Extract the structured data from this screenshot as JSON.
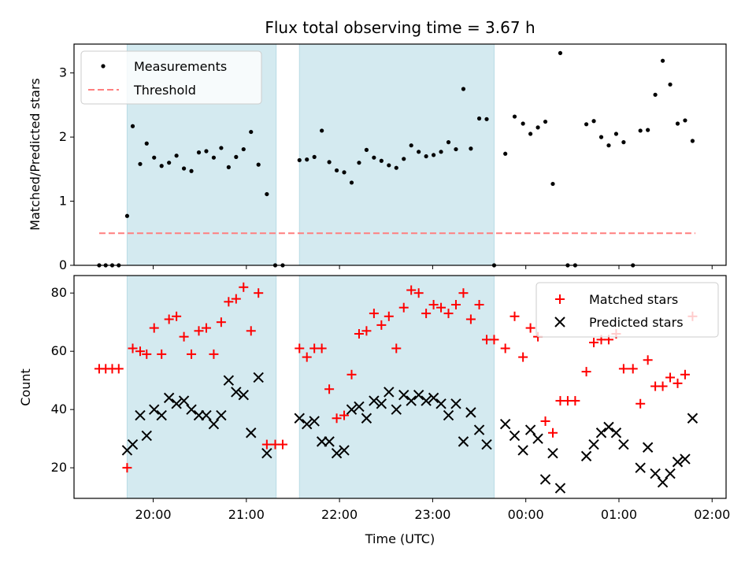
{
  "chart_data": {
    "title": "Flux total observing time = 3.67 h",
    "xlabel": "Time (UTC)",
    "xlim_hours": [
      19.15,
      26.15
    ],
    "x_ticks": [
      {
        "label": "20:00",
        "hour": 20
      },
      {
        "label": "21:00",
        "hour": 21
      },
      {
        "label": "22:00",
        "hour": 22
      },
      {
        "label": "23:00",
        "hour": 23
      },
      {
        "label": "00:00",
        "hour": 24
      },
      {
        "label": "01:00",
        "hour": 25
      },
      {
        "label": "02:00",
        "hour": 26
      }
    ],
    "shaded_intervals_hours": [
      [
        19.72,
        21.32
      ],
      [
        21.57,
        23.66
      ]
    ],
    "shade_color": "#d4eaf0",
    "panels": [
      {
        "id": "ratio",
        "type": "scatter",
        "ylabel": "Matched/Predicted stars",
        "ylim": [
          0,
          3.45
        ],
        "y_ticks": [
          0,
          1,
          2,
          3
        ],
        "legend": [
          {
            "label": "Measurements",
            "marker": "dot",
            "color": "#000000"
          },
          {
            "label": "Threshold",
            "marker": "dashed-line",
            "color": "#ff7f7f"
          }
        ],
        "threshold": {
          "value": 0.5,
          "x_range_hours": [
            19.42,
            25.82
          ],
          "color": "#ff7f7f"
        },
        "series": [
          {
            "name": "Measurements",
            "marker": "dot",
            "color": "#000000",
            "points": [
              [
                19.42,
                0
              ],
              [
                19.49,
                0
              ],
              [
                19.56,
                0
              ],
              [
                19.63,
                0
              ],
              [
                19.72,
                0.77
              ],
              [
                19.78,
                2.17
              ],
              [
                19.86,
                1.58
              ],
              [
                19.93,
                1.9
              ],
              [
                20.01,
                1.68
              ],
              [
                20.09,
                1.55
              ],
              [
                20.17,
                1.6
              ],
              [
                20.25,
                1.71
              ],
              [
                20.33,
                1.51
              ],
              [
                20.41,
                1.47
              ],
              [
                20.49,
                1.76
              ],
              [
                20.57,
                1.78
              ],
              [
                20.65,
                1.68
              ],
              [
                20.73,
                1.83
              ],
              [
                20.81,
                1.53
              ],
              [
                20.89,
                1.69
              ],
              [
                20.97,
                1.81
              ],
              [
                21.05,
                2.08
              ],
              [
                21.13,
                1.57
              ],
              [
                21.22,
                1.11
              ],
              [
                21.31,
                0
              ],
              [
                21.39,
                0
              ],
              [
                21.57,
                1.64
              ],
              [
                21.65,
                1.65
              ],
              [
                21.73,
                1.69
              ],
              [
                21.81,
                2.1
              ],
              [
                21.89,
                1.61
              ],
              [
                21.97,
                1.48
              ],
              [
                22.05,
                1.45
              ],
              [
                22.13,
                1.29
              ],
              [
                22.21,
                1.6
              ],
              [
                22.29,
                1.8
              ],
              [
                22.37,
                1.68
              ],
              [
                22.45,
                1.63
              ],
              [
                22.53,
                1.56
              ],
              [
                22.61,
                1.52
              ],
              [
                22.69,
                1.66
              ],
              [
                22.77,
                1.87
              ],
              [
                22.85,
                1.77
              ],
              [
                22.93,
                1.7
              ],
              [
                23.01,
                1.72
              ],
              [
                23.09,
                1.77
              ],
              [
                23.17,
                1.92
              ],
              [
                23.25,
                1.81
              ],
              [
                23.33,
                2.75
              ],
              [
                23.41,
                1.82
              ],
              [
                23.5,
                2.29
              ],
              [
                23.58,
                2.28
              ],
              [
                23.66,
                0
              ],
              [
                23.78,
                1.74
              ],
              [
                23.88,
                2.32
              ],
              [
                23.97,
                2.21
              ],
              [
                24.05,
                2.05
              ],
              [
                24.13,
                2.15
              ],
              [
                24.21,
                2.24
              ],
              [
                24.29,
                1.27
              ],
              [
                24.37,
                3.31
              ],
              [
                24.45,
                0
              ],
              [
                24.53,
                0
              ],
              [
                24.65,
                2.2
              ],
              [
                24.73,
                2.25
              ],
              [
                24.81,
                2.0
              ],
              [
                24.89,
                1.87
              ],
              [
                24.97,
                2.05
              ],
              [
                25.05,
                1.92
              ],
              [
                25.15,
                0
              ],
              [
                25.23,
                2.1
              ],
              [
                25.31,
                2.11
              ],
              [
                25.39,
                2.66
              ],
              [
                25.47,
                3.19
              ],
              [
                25.55,
                2.82
              ],
              [
                25.63,
                2.21
              ],
              [
                25.71,
                2.26
              ],
              [
                25.79,
                1.94
              ]
            ]
          }
        ]
      },
      {
        "id": "count",
        "type": "scatter",
        "ylabel": "Count",
        "ylim": [
          9.5,
          86
        ],
        "y_ticks": [
          20,
          40,
          60,
          80
        ],
        "legend": [
          {
            "label": "Matched stars",
            "marker": "plus",
            "color": "#ff0000"
          },
          {
            "label": "Predicted stars",
            "marker": "x",
            "color": "#000000"
          }
        ],
        "series": [
          {
            "name": "Matched stars",
            "marker": "plus",
            "color": "#ff0000",
            "points": [
              [
                19.42,
                54
              ],
              [
                19.49,
                54
              ],
              [
                19.56,
                54
              ],
              [
                19.63,
                54
              ],
              [
                19.72,
                20
              ],
              [
                19.78,
                61
              ],
              [
                19.86,
                60
              ],
              [
                19.93,
                59
              ],
              [
                20.01,
                68
              ],
              [
                20.09,
                59
              ],
              [
                20.17,
                71
              ],
              [
                20.25,
                72
              ],
              [
                20.33,
                65
              ],
              [
                20.41,
                59
              ],
              [
                20.49,
                67
              ],
              [
                20.57,
                68
              ],
              [
                20.65,
                59
              ],
              [
                20.73,
                70
              ],
              [
                20.81,
                77
              ],
              [
                20.89,
                78
              ],
              [
                20.97,
                82
              ],
              [
                21.05,
                67
              ],
              [
                21.13,
                80
              ],
              [
                21.22,
                28
              ],
              [
                21.31,
                28
              ],
              [
                21.39,
                28
              ],
              [
                21.57,
                61
              ],
              [
                21.65,
                58
              ],
              [
                21.73,
                61
              ],
              [
                21.81,
                61
              ],
              [
                21.89,
                47
              ],
              [
                21.97,
                37
              ],
              [
                22.05,
                38
              ],
              [
                22.13,
                52
              ],
              [
                22.21,
                66
              ],
              [
                22.29,
                67
              ],
              [
                22.37,
                73
              ],
              [
                22.45,
                69
              ],
              [
                22.53,
                72
              ],
              [
                22.61,
                61
              ],
              [
                22.69,
                75
              ],
              [
                22.77,
                81
              ],
              [
                22.85,
                80
              ],
              [
                22.93,
                73
              ],
              [
                23.01,
                76
              ],
              [
                23.09,
                75
              ],
              [
                23.17,
                73
              ],
              [
                23.25,
                76
              ],
              [
                23.33,
                80
              ],
              [
                23.41,
                71
              ],
              [
                23.5,
                76
              ],
              [
                23.58,
                64
              ],
              [
                23.66,
                64
              ],
              [
                23.78,
                61
              ],
              [
                23.88,
                72
              ],
              [
                23.97,
                58
              ],
              [
                24.05,
                68
              ],
              [
                24.13,
                65
              ],
              [
                24.21,
                36
              ],
              [
                24.29,
                32
              ],
              [
                24.37,
                43
              ],
              [
                24.45,
                43
              ],
              [
                24.53,
                43
              ],
              [
                24.65,
                53
              ],
              [
                24.73,
                63
              ],
              [
                24.81,
                64
              ],
              [
                24.89,
                64
              ],
              [
                24.97,
                66
              ],
              [
                25.05,
                54
              ],
              [
                25.15,
                54
              ],
              [
                25.23,
                42
              ],
              [
                25.31,
                57
              ],
              [
                25.39,
                48
              ],
              [
                25.47,
                48
              ],
              [
                25.55,
                51
              ],
              [
                25.63,
                49
              ],
              [
                25.71,
                52
              ],
              [
                25.79,
                72
              ]
            ]
          },
          {
            "name": "Predicted stars",
            "marker": "x",
            "color": "#000000",
            "points": [
              [
                19.72,
                26
              ],
              [
                19.78,
                28
              ],
              [
                19.86,
                38
              ],
              [
                19.93,
                31
              ],
              [
                20.01,
                40
              ],
              [
                20.09,
                38
              ],
              [
                20.17,
                44
              ],
              [
                20.25,
                42
              ],
              [
                20.33,
                43
              ],
              [
                20.41,
                40
              ],
              [
                20.49,
                38
              ],
              [
                20.57,
                38
              ],
              [
                20.65,
                35
              ],
              [
                20.73,
                38
              ],
              [
                20.81,
                50
              ],
              [
                20.89,
                46
              ],
              [
                20.97,
                45
              ],
              [
                21.05,
                32
              ],
              [
                21.13,
                51
              ],
              [
                21.22,
                25
              ],
              [
                21.57,
                37
              ],
              [
                21.65,
                35
              ],
              [
                21.73,
                36
              ],
              [
                21.81,
                29
              ],
              [
                21.89,
                29
              ],
              [
                21.97,
                25
              ],
              [
                22.05,
                26
              ],
              [
                22.13,
                40
              ],
              [
                22.21,
                41
              ],
              [
                22.29,
                37
              ],
              [
                22.37,
                43
              ],
              [
                22.45,
                42
              ],
              [
                22.53,
                46
              ],
              [
                22.61,
                40
              ],
              [
                22.69,
                45
              ],
              [
                22.77,
                43
              ],
              [
                22.85,
                45
              ],
              [
                22.93,
                43
              ],
              [
                23.01,
                44
              ],
              [
                23.09,
                42
              ],
              [
                23.17,
                38
              ],
              [
                23.25,
                42
              ],
              [
                23.33,
                29
              ],
              [
                23.41,
                39
              ],
              [
                23.5,
                33
              ],
              [
                23.58,
                28
              ],
              [
                23.78,
                35
              ],
              [
                23.88,
                31
              ],
              [
                23.97,
                26
              ],
              [
                24.05,
                33
              ],
              [
                24.13,
                30
              ],
              [
                24.21,
                16
              ],
              [
                24.29,
                25
              ],
              [
                24.37,
                13
              ],
              [
                24.65,
                24
              ],
              [
                24.73,
                28
              ],
              [
                24.81,
                32
              ],
              [
                24.89,
                34
              ],
              [
                24.97,
                32
              ],
              [
                25.05,
                28
              ],
              [
                25.23,
                20
              ],
              [
                25.31,
                27
              ],
              [
                25.39,
                18
              ],
              [
                25.47,
                15
              ],
              [
                25.55,
                18
              ],
              [
                25.63,
                22
              ],
              [
                25.71,
                23
              ],
              [
                25.79,
                37
              ]
            ]
          }
        ]
      }
    ]
  }
}
